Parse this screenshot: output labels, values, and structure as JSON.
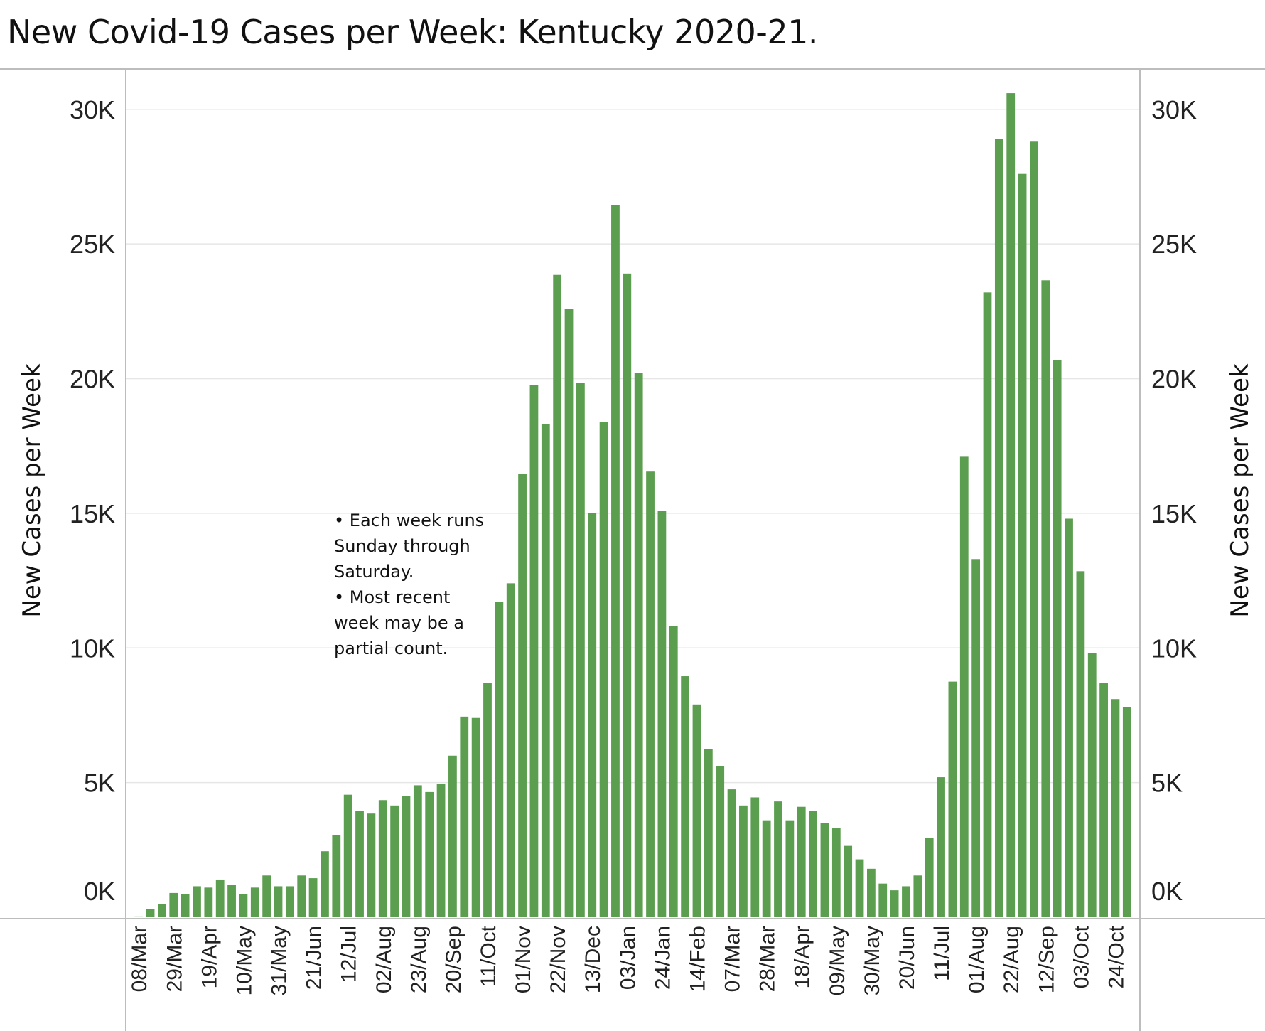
{
  "title": "New Covid-19 Cases per Week:  Kentucky 2020-21.",
  "note": [
    "• Each week runs",
    "Sunday through",
    "Saturday.",
    "• Most recent",
    "week may be a",
    "partial count."
  ],
  "colors": {
    "bar": "#5c9e4f",
    "grid": "#e6e6e6",
    "axis": "#bdbdbd"
  },
  "chart_data": {
    "type": "bar",
    "ylabel_left": "New Cases per Week",
    "ylabel_right": "New Cases per Week",
    "ylim": [
      0,
      31500
    ],
    "y_ticks": [
      0,
      5000,
      10000,
      15000,
      20000,
      25000,
      30000
    ],
    "y_tick_labels": [
      "0K",
      "5K",
      "10K",
      "15K",
      "20K",
      "25K",
      "30K"
    ],
    "grid": true,
    "x_tick_labels": [
      "08/Mar",
      "29/Mar",
      "19/Apr",
      "10/May",
      "31/May",
      "21/Jun",
      "12/Jul",
      "02/Aug",
      "23/Aug",
      "20/Sep",
      "11/Oct",
      "01/Nov",
      "22/Nov",
      "13/Dec",
      "03/Jan",
      "24/Jan",
      "14/Feb",
      "07/Mar",
      "28/Mar",
      "18/Apr",
      "09/May",
      "30/May",
      "20/Jun",
      "11/Jul",
      "01/Aug",
      "22/Aug",
      "12/Sep",
      "03/Oct",
      "24/Oct"
    ],
    "values": [
      30,
      300,
      500,
      900,
      850,
      1150,
      1100,
      1400,
      1200,
      850,
      1100,
      1550,
      1150,
      1150,
      1550,
      1450,
      2450,
      3050,
      4550,
      3950,
      3850,
      4350,
      4150,
      4500,
      4900,
      4650,
      4950,
      6000,
      7450,
      7400,
      8700,
      11700,
      12400,
      16450,
      19750,
      18300,
      23850,
      22600,
      19850,
      15000,
      18400,
      26450,
      23900,
      20200,
      16550,
      15100,
      10800,
      8950,
      7900,
      6250,
      5600,
      4750,
      4150,
      4450,
      3600,
      4300,
      3600,
      4100,
      3950,
      3500,
      3300,
      2650,
      2150,
      1800,
      1250,
      1000,
      1150,
      1550,
      2950,
      5200,
      8750,
      17100,
      13300,
      23200,
      28900,
      30600,
      27600,
      28800,
      23650,
      20700,
      14800,
      12850,
      9800,
      8700,
      8100,
      7800
    ]
  }
}
